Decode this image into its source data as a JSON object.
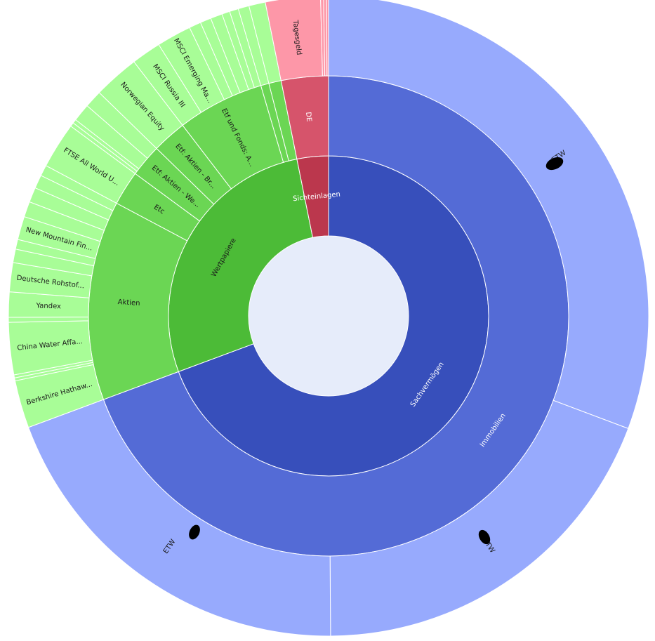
{
  "chart_data": {
    "type": "sunburst",
    "center_color": "#e6ecfa",
    "colors": {
      "Sachvermögen": [
        "#374fbb",
        "#546bd6",
        "#97aafd"
      ],
      "Wertpapiere": [
        "#4cbb37",
        "#6bd654",
        "#a8fd97"
      ],
      "Sichteinlagen": [
        "#bb374d",
        "#d6546b",
        "#fd97a8"
      ]
    },
    "rings": [
      {
        "level": 1,
        "segments": [
          {
            "label": "Sachvermögen",
            "group": "Sachvermögen",
            "start": 0.0,
            "end": 0.6934
          },
          {
            "label": "Wertpapiere",
            "group": "Wertpapiere",
            "start": 0.6934,
            "end": 0.9683
          },
          {
            "label": "Sichteinlagen",
            "group": "Sichteinlagen",
            "start": 0.9683,
            "end": 1.0
          }
        ]
      },
      {
        "level": 2,
        "segments": [
          {
            "label": "Immobilien",
            "group": "Sachvermögen",
            "start": 0.0,
            "end": 0.6934
          },
          {
            "label": "Aktien",
            "group": "Wertpapiere",
            "start": 0.6934,
            "end": 0.8278
          },
          {
            "label": "Etc",
            "group": "Wertpapiere",
            "start": 0.8278,
            "end": 0.851
          },
          {
            "label": "Etf: Aktien - We...",
            "group": "Wertpapiere",
            "start": 0.851,
            "end": 0.8729
          },
          {
            "label": "Etf: Aktien - Br...",
            "group": "Wertpapiere",
            "start": 0.8729,
            "end": 0.896
          },
          {
            "label": "Etf und Fonds: A...",
            "group": "Wertpapiere",
            "start": 0.896,
            "end": 0.9545
          },
          {
            "label": "",
            "group": "Wertpapiere",
            "start": 0.9545,
            "end": 0.96
          },
          {
            "label": "",
            "group": "Wertpapiere",
            "start": 0.96,
            "end": 0.9683
          },
          {
            "label": "DE",
            "group": "Sichteinlagen",
            "start": 0.9683,
            "end": 1.0
          }
        ]
      },
      {
        "level": 3,
        "segments": [
          {
            "label": "ETW",
            "group": "Sachvermögen",
            "start": 0.0,
            "end": 0.3072
          },
          {
            "label": "ETW",
            "group": "Sachvermögen",
            "start": 0.3072,
            "end": 0.499
          },
          {
            "label": "ETW",
            "group": "Sachvermögen",
            "start": 0.499,
            "end": 0.6934
          },
          {
            "label": "Berkshire Hathaw...",
            "group": "Wertpapiere",
            "start": 0.6934,
            "end": 0.7175
          },
          {
            "label": "",
            "group": "Wertpapiere",
            "start": 0.7175,
            "end": 0.719
          },
          {
            "label": "",
            "group": "Wertpapiere",
            "start": 0.719,
            "end": 0.7205
          },
          {
            "label": "China Water Affa...",
            "group": "Wertpapiere",
            "start": 0.7205,
            "end": 0.7468
          },
          {
            "label": "",
            "group": "Wertpapiere",
            "start": 0.7468,
            "end": 0.7493
          },
          {
            "label": "Yandex",
            "group": "Wertpapiere",
            "start": 0.7493,
            "end": 0.762
          },
          {
            "label": "Deutsche Rohstof...",
            "group": "Wertpapiere",
            "start": 0.762,
            "end": 0.7767
          },
          {
            "label": "",
            "group": "Wertpapiere",
            "start": 0.7767,
            "end": 0.7835
          },
          {
            "label": "",
            "group": "Wertpapiere",
            "start": 0.7835,
            "end": 0.7884
          },
          {
            "label": "New Mountain Fin...",
            "group": "Wertpapiere",
            "start": 0.7884,
            "end": 0.8002
          },
          {
            "label": "",
            "group": "Wertpapiere",
            "start": 0.8002,
            "end": 0.808
          },
          {
            "label": "",
            "group": "Wertpapiere",
            "start": 0.808,
            "end": 0.8155
          },
          {
            "label": "",
            "group": "Wertpapiere",
            "start": 0.8155,
            "end": 0.8223
          },
          {
            "label": "",
            "group": "Wertpapiere",
            "start": 0.8223,
            "end": 0.8278
          },
          {
            "label": "FTSE All World U...",
            "group": "Wertpapiere",
            "start": 0.8278,
            "end": 0.851
          },
          {
            "label": "",
            "group": "Wertpapiere",
            "start": 0.851,
            "end": 0.853
          },
          {
            "label": "",
            "group": "Wertpapiere",
            "start": 0.853,
            "end": 0.855
          },
          {
            "label": "",
            "group": "Wertpapiere",
            "start": 0.855,
            "end": 0.864
          },
          {
            "label": "",
            "group": "Wertpapiere",
            "start": 0.864,
            "end": 0.8729
          },
          {
            "label": "Norwegian Equity",
            "group": "Wertpapiere",
            "start": 0.8729,
            "end": 0.896
          },
          {
            "label": "MSCI Russia III",
            "group": "Wertpapiere",
            "start": 0.896,
            "end": 0.911
          },
          {
            "label": "MSCI Emerging Ma...",
            "group": "Wertpapiere",
            "start": 0.911,
            "end": 0.9285
          },
          {
            "label": "",
            "group": "Wertpapiere",
            "start": 0.9285,
            "end": 0.9345
          },
          {
            "label": "",
            "group": "Wertpapiere",
            "start": 0.9345,
            "end": 0.94
          },
          {
            "label": "",
            "group": "Wertpapiere",
            "start": 0.94,
            "end": 0.946
          },
          {
            "label": "",
            "group": "Wertpapiere",
            "start": 0.946,
            "end": 0.95
          },
          {
            "label": "",
            "group": "Wertpapiere",
            "start": 0.95,
            "end": 0.9545
          },
          {
            "label": "",
            "group": "Wertpapiere",
            "start": 0.9545,
            "end": 0.96
          },
          {
            "label": "",
            "group": "Wertpapiere",
            "start": 0.96,
            "end": 0.9683
          },
          {
            "label": "Tagesgeld",
            "group": "Sichteinlagen",
            "start": 0.9683,
            "end": 0.996
          },
          {
            "label": "",
            "group": "Sichteinlagen",
            "start": 0.996,
            "end": 0.9975
          },
          {
            "label": "",
            "group": "Sichteinlagen",
            "start": 0.9975,
            "end": 0.999
          },
          {
            "label": "",
            "group": "Sichteinlagen",
            "start": 0.999,
            "end": 1.0
          }
        ]
      }
    ]
  }
}
